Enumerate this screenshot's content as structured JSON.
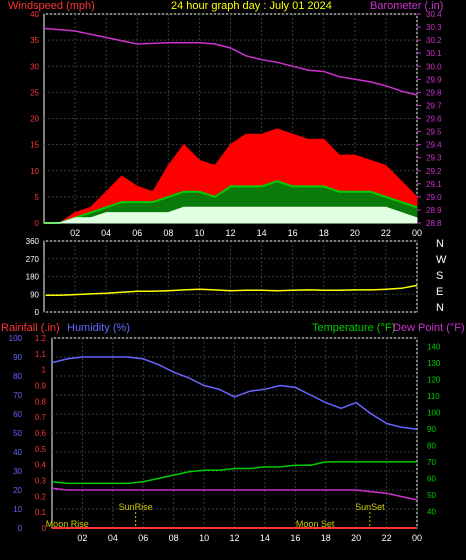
{
  "header": {
    "left_title": "Windspeed (mph)",
    "center_title": "24 hour graph day : July 01 2024",
    "right_title": "Barometer (.in)"
  },
  "colors": {
    "background": "#000000",
    "grid": "#3a3a3a",
    "frame": "#ffffff",
    "wind_gust": "#ff0000",
    "wind_avg": "#00cc00",
    "wind_low": "#e0ffe0",
    "barometer": "#cc33cc",
    "direction": "#ffff00",
    "humidity": "#6666ff",
    "temperature": "#00cc00",
    "dew_point": "#cc33cc",
    "rainfall": "#ff3333",
    "label_red": "#ff3333",
    "label_magenta": "#cc33cc",
    "label_blue": "#6666ff",
    "label_green": "#00cc00",
    "label_yellow": "#cccc00",
    "axis_text_red": "#ff3333",
    "axis_text_magenta": "#cc33cc",
    "axis_text_blue": "#6666ff",
    "axis_text_green": "#00cc00",
    "axis_text_white": "#ffffff"
  },
  "time_ticks": [
    "02",
    "04",
    "06",
    "08",
    "10",
    "12",
    "14",
    "16",
    "18",
    "20",
    "22",
    "00"
  ],
  "direction_labels": [
    "N",
    "W",
    "S",
    "E",
    "N"
  ],
  "lower_labels": {
    "rainfall": "Rainfall (.in)",
    "humidity": "Humidity (%)",
    "temperature": "Temperature (°F)",
    "dew_point": "Dew Point (°F)"
  },
  "events": [
    {
      "label": "Moon Rise",
      "hour": 1.0,
      "color": "yellow"
    },
    {
      "label": "SunRise",
      "hour": 5.5,
      "color": "yellow"
    },
    {
      "label": "Moon Set",
      "hour": 17.3,
      "color": "yellow"
    },
    {
      "label": "SunSet",
      "hour": 20.9,
      "color": "yellow"
    }
  ],
  "chart_data": [
    {
      "type": "line",
      "panel": "wind_barometer",
      "x_unit": "hour",
      "x_ticks": [
        "02",
        "04",
        "06",
        "08",
        "10",
        "12",
        "14",
        "16",
        "18",
        "20",
        "22",
        "00"
      ],
      "y_left": {
        "label": "Windspeed (mph)",
        "range": [
          0,
          40
        ],
        "ticks": [
          0,
          5,
          10,
          15,
          20,
          25,
          30,
          35,
          40
        ]
      },
      "y_right": {
        "label": "Barometer (.in)",
        "range": [
          28.8,
          30.4
        ],
        "ticks": [
          28.8,
          28.9,
          29.0,
          29.1,
          29.2,
          29.3,
          29.4,
          29.5,
          29.6,
          29.7,
          29.8,
          29.9,
          30.0,
          30.1,
          30.2,
          30.3,
          30.4
        ]
      },
      "series": [
        {
          "key": "barometer",
          "axis": "right",
          "x": [
            0,
            2,
            4,
            6,
            8,
            10,
            11,
            12,
            13,
            14,
            15,
            16,
            17,
            18,
            19,
            20,
            21,
            22,
            23,
            24
          ],
          "values": [
            30.29,
            30.27,
            30.22,
            30.17,
            30.18,
            30.18,
            30.17,
            30.14,
            30.08,
            30.05,
            30.03,
            30.0,
            29.97,
            29.96,
            29.92,
            29.9,
            29.88,
            29.85,
            29.81,
            29.78
          ]
        },
        {
          "key": "wind_gust",
          "axis": "left",
          "x": [
            0,
            1,
            2,
            3,
            4,
            5,
            6,
            7,
            8,
            9,
            10,
            11,
            12,
            13,
            14,
            15,
            16,
            17,
            18,
            19,
            20,
            21,
            22,
            23,
            24
          ],
          "values": [
            0,
            0,
            2,
            3,
            6,
            9,
            7,
            6,
            11,
            15,
            12,
            11,
            15,
            17,
            17,
            18,
            17,
            16,
            16,
            13,
            13,
            12,
            11,
            8,
            5
          ]
        },
        {
          "key": "wind_avg",
          "axis": "left",
          "x": [
            0,
            1,
            2,
            3,
            4,
            5,
            6,
            7,
            8,
            9,
            10,
            11,
            12,
            13,
            14,
            15,
            16,
            17,
            18,
            19,
            20,
            21,
            22,
            23,
            24
          ],
          "values": [
            0,
            0,
            1,
            2,
            3,
            4,
            4,
            4,
            5,
            6,
            6,
            5,
            7,
            7,
            7,
            8,
            7,
            7,
            7,
            6,
            6,
            6,
            5,
            4,
            3
          ]
        },
        {
          "key": "wind_low",
          "axis": "left",
          "x": [
            0,
            1,
            2,
            3,
            4,
            5,
            6,
            7,
            8,
            9,
            10,
            11,
            12,
            13,
            14,
            15,
            16,
            17,
            18,
            19,
            20,
            21,
            22,
            23,
            24
          ],
          "values": [
            0,
            0,
            1,
            1,
            2,
            2,
            2,
            2,
            2,
            3,
            3,
            3,
            3,
            3,
            3,
            3,
            3,
            3,
            3,
            3,
            3,
            3,
            3,
            2,
            1
          ]
        }
      ]
    },
    {
      "type": "line",
      "panel": "wind_direction",
      "x_unit": "hour",
      "y_left": {
        "range": [
          0,
          360
        ],
        "ticks": [
          0,
          90,
          180,
          270,
          360
        ]
      },
      "series": [
        {
          "key": "direction",
          "x": [
            0.1,
            1,
            2,
            3,
            4,
            5,
            6,
            7,
            8,
            9,
            10,
            11,
            12,
            13,
            14,
            15,
            16,
            17,
            18,
            19,
            20,
            21,
            22,
            23,
            24
          ],
          "values": [
            85,
            85,
            88,
            92,
            95,
            100,
            105,
            105,
            108,
            112,
            115,
            112,
            108,
            110,
            110,
            108,
            110,
            112,
            110,
            110,
            112,
            112,
            115,
            120,
            135
          ]
        }
      ]
    },
    {
      "type": "line",
      "panel": "humidity_temperature",
      "x_unit": "hour",
      "y_left_rain": {
        "label": "Rainfall (.in)",
        "range": [
          0,
          1.2
        ],
        "ticks": [
          0,
          0.1,
          0.2,
          0.3,
          0.4,
          0.5,
          0.6,
          0.7,
          0.8,
          0.9,
          1,
          1.1,
          1.2
        ]
      },
      "y_left_humidity": {
        "label": "Humidity (%)",
        "range": [
          0,
          100
        ],
        "ticks": [
          0,
          10,
          20,
          30,
          40,
          50,
          60,
          70,
          80,
          90,
          100
        ]
      },
      "y_right": {
        "label": "Temperature (°F) Dew Point (°F)",
        "range": [
          30,
          145
        ],
        "ticks": [
          40,
          50,
          60,
          70,
          80,
          90,
          100,
          110,
          120,
          130,
          140
        ]
      },
      "series": [
        {
          "key": "humidity",
          "axis": "humidity",
          "x": [
            0,
            1,
            2,
            3,
            4,
            5,
            6,
            7,
            8,
            9,
            10,
            11,
            12,
            13,
            14,
            15,
            16,
            17,
            18,
            19,
            20,
            21,
            22,
            23,
            24
          ],
          "values": [
            87,
            89,
            90,
            90,
            90,
            90,
            89,
            86,
            82,
            79,
            75,
            73,
            69,
            72,
            73,
            75,
            74,
            70,
            66,
            63,
            66,
            60,
            55,
            53,
            52
          ]
        },
        {
          "key": "temperature",
          "axis": "right",
          "x": [
            0,
            1,
            2,
            3,
            4,
            5,
            6,
            7,
            8,
            9,
            10,
            11,
            12,
            13,
            14,
            15,
            16,
            17,
            18,
            19,
            20,
            21,
            22,
            23,
            24
          ],
          "values": [
            58,
            57,
            57,
            57,
            57,
            57,
            58,
            60,
            62,
            64,
            65,
            65,
            66,
            66,
            67,
            67,
            68,
            68,
            70,
            70,
            70,
            70,
            70,
            70,
            70
          ]
        },
        {
          "key": "dew_point",
          "axis": "right",
          "x": [
            0,
            1,
            2,
            3,
            4,
            5,
            6,
            7,
            8,
            9,
            10,
            11,
            12,
            13,
            14,
            15,
            16,
            17,
            18,
            19,
            20,
            21,
            22,
            23,
            24
          ],
          "values": [
            54,
            53,
            53,
            53,
            53,
            53,
            53,
            53,
            53,
            53,
            53,
            53,
            53,
            53,
            53,
            53,
            53,
            53,
            53,
            53,
            53,
            52,
            51,
            49,
            47
          ]
        },
        {
          "key": "rainfall",
          "axis": "rain",
          "x": [
            0,
            24
          ],
          "values": [
            0,
            0
          ]
        }
      ]
    }
  ]
}
